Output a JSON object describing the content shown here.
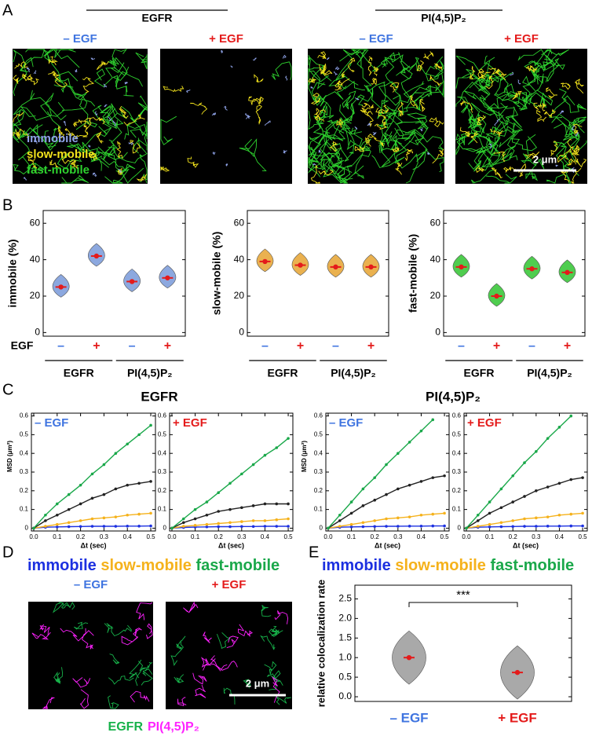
{
  "panel_labels": [
    "A",
    "B",
    "C",
    "D",
    "E"
  ],
  "panel_a": {
    "groups": [
      "EGFR",
      "PI(4,5)P₂"
    ],
    "conditions": [
      "– EGF",
      "+ EGF",
      "– EGF",
      "+ EGF"
    ],
    "condition_colors": [
      "#3f74e0",
      "#e41b1b",
      "#3f74e0",
      "#e41b1b"
    ],
    "legend": [
      {
        "name": "immobile",
        "color": "#8fa3e8"
      },
      {
        "name": "slow-mobile",
        "color": "#f2e21c"
      },
      {
        "name": "fast-mobile",
        "color": "#2ed22e"
      }
    ],
    "scale_bar": "2 μm"
  },
  "panel_c": {
    "titles": [
      "EGFR",
      "PI(4,5)P₂"
    ]
  },
  "panel_d": {
    "conditions": [
      "– EGF",
      "+ EGF"
    ],
    "condition_colors": [
      "#3f74e0",
      "#e41b1b"
    ],
    "legend": [
      {
        "name": "EGFR",
        "color": "#17b24a"
      },
      {
        "name": "PI(4,5)P₂",
        "color": "#ff22ff"
      }
    ],
    "scale_bar": "2 μm"
  },
  "chart_data": [
    {
      "type": "violin",
      "ylabel": "immobile (%)",
      "x_label": "EGF",
      "categories": [
        "–",
        "+",
        "–",
        "+"
      ],
      "category_colors": [
        "#3f74e0",
        "#e41b1b",
        "#3f74e0",
        "#e41b1b"
      ],
      "groups": [
        "EGFR",
        "PI(4,5)P₂"
      ],
      "values": [
        25,
        42,
        28,
        30
      ],
      "color": "#7f9fdc",
      "ylim": [
        -2,
        67
      ],
      "yticks": [
        0,
        20,
        40,
        60
      ]
    },
    {
      "type": "violin",
      "ylabel": "slow-mobile (%)",
      "categories": [
        "–",
        "+",
        "–",
        "+"
      ],
      "category_colors": [
        "#3f74e0",
        "#e41b1b",
        "#3f74e0",
        "#e41b1b"
      ],
      "groups": [
        "EGFR",
        "PI(4,5)P₂"
      ],
      "values": [
        39,
        37,
        36,
        36
      ],
      "color": "#e8a83c",
      "ylim": [
        -2,
        67
      ],
      "yticks": [
        0,
        20,
        40,
        60
      ]
    },
    {
      "type": "violin",
      "ylabel": "fast-mobile (%)",
      "categories": [
        "–",
        "+",
        "–",
        "+"
      ],
      "category_colors": [
        "#3f74e0",
        "#e41b1b",
        "#3f74e0",
        "#e41b1b"
      ],
      "groups": [
        "EGFR",
        "PI(4,5)P₂"
      ],
      "values": [
        36,
        20,
        35,
        33
      ],
      "color": "#3cc83c",
      "ylim": [
        -2,
        67
      ],
      "yticks": [
        0,
        20,
        40,
        60
      ]
    },
    {
      "type": "line",
      "annotation": "– EGF",
      "annotation_color": "#3f74e0",
      "ylabel": "MSD (μm²)",
      "xlabel": "Δt (sec)",
      "x": [
        0,
        0.05,
        0.1,
        0.15,
        0.2,
        0.25,
        0.3,
        0.35,
        0.4,
        0.45,
        0.5
      ],
      "xlim": [
        -0.01,
        0.52
      ],
      "xticks": [
        {
          "value": 0,
          "label": "0.0"
        },
        0.1,
        0.2,
        0.3,
        0.4,
        0.5
      ],
      "ylim": [
        -0.015,
        0.615
      ],
      "yticks": [
        0,
        0.1,
        0.2,
        0.3,
        0.4,
        0.5,
        0.6
      ],
      "series": [
        {
          "name": "immobile",
          "color": "#1c30e0",
          "values": [
            0,
            0.005,
            0.007,
            0.008,
            0.009,
            0.01,
            0.01,
            0.01,
            0.011,
            0.011,
            0.012
          ]
        },
        {
          "name": "slow-mobile",
          "color": "#f5b21c",
          "values": [
            0,
            0.01,
            0.02,
            0.03,
            0.04,
            0.05,
            0.055,
            0.06,
            0.07,
            0.075,
            0.08
          ]
        },
        {
          "color": "#222222",
          "values": [
            0,
            0.04,
            0.07,
            0.1,
            0.13,
            0.16,
            0.18,
            0.21,
            0.23,
            0.24,
            0.25
          ]
        },
        {
          "name": "fast-mobile",
          "color": "#1aa84a",
          "values": [
            0,
            0.07,
            0.13,
            0.18,
            0.23,
            0.29,
            0.34,
            0.4,
            0.45,
            0.5,
            0.55
          ]
        }
      ]
    },
    {
      "type": "line",
      "annotation": "+ EGF",
      "annotation_color": "#e41b1b",
      "xlabel": "Δt (sec)",
      "x": [
        0,
        0.05,
        0.1,
        0.15,
        0.2,
        0.25,
        0.3,
        0.35,
        0.4,
        0.45,
        0.5
      ],
      "xlim": [
        -0.01,
        0.52
      ],
      "xticks": [
        {
          "value": 0,
          "label": "0.0"
        },
        0.1,
        0.2,
        0.3,
        0.4,
        0.5
      ],
      "ylim": [
        -0.015,
        0.615
      ],
      "yticks": [
        0,
        0.1,
        0.2,
        0.3,
        0.4,
        0.5,
        0.6
      ],
      "series": [
        {
          "name": "immobile",
          "color": "#1c30e0",
          "values": [
            0,
            0.004,
            0.006,
            0.007,
            0.008,
            0.008,
            0.009,
            0.009,
            0.01,
            0.01,
            0.01
          ]
        },
        {
          "name": "slow-mobile",
          "color": "#f5b21c",
          "values": [
            0,
            0.01,
            0.015,
            0.02,
            0.025,
            0.03,
            0.035,
            0.04,
            0.04,
            0.045,
            0.05
          ]
        },
        {
          "color": "#222222",
          "values": [
            0,
            0.03,
            0.05,
            0.07,
            0.09,
            0.1,
            0.11,
            0.12,
            0.13,
            0.13,
            0.13
          ]
        },
        {
          "name": "fast-mobile",
          "color": "#1aa84a",
          "values": [
            0,
            0.05,
            0.1,
            0.14,
            0.19,
            0.24,
            0.29,
            0.34,
            0.39,
            0.43,
            0.48
          ]
        }
      ]
    },
    {
      "type": "line",
      "annotation": "– EGF",
      "annotation_color": "#3f74e0",
      "ylabel": "MSD (μm²)",
      "xlabel": "Δt (sec)",
      "x": [
        0,
        0.05,
        0.1,
        0.15,
        0.2,
        0.25,
        0.3,
        0.35,
        0.4,
        0.45,
        0.5
      ],
      "xlim": [
        -0.01,
        0.52
      ],
      "xticks": [
        {
          "value": 0,
          "label": "0.0"
        },
        0.1,
        0.2,
        0.3,
        0.4,
        0.5
      ],
      "ylim": [
        -0.015,
        0.615
      ],
      "yticks": [
        0,
        0.1,
        0.2,
        0.3,
        0.4,
        0.5,
        0.6
      ],
      "series": [
        {
          "name": "immobile",
          "color": "#1c30e0",
          "values": [
            0,
            0.005,
            0.007,
            0.008,
            0.009,
            0.01,
            0.01,
            0.011,
            0.011,
            0.012,
            0.012
          ]
        },
        {
          "name": "slow-mobile",
          "color": "#f5b21c",
          "values": [
            0,
            0.01,
            0.02,
            0.03,
            0.04,
            0.05,
            0.055,
            0.06,
            0.07,
            0.075,
            0.08
          ]
        },
        {
          "color": "#222222",
          "values": [
            0,
            0.04,
            0.08,
            0.12,
            0.15,
            0.18,
            0.21,
            0.23,
            0.25,
            0.27,
            0.28
          ]
        },
        {
          "name": "fast-mobile",
          "color": "#1aa84a",
          "values": [
            0,
            0.07,
            0.14,
            0.21,
            0.27,
            0.34,
            0.4,
            0.46,
            0.52,
            0.58,
            null
          ]
        }
      ]
    },
    {
      "type": "line",
      "annotation": "+ EGF",
      "annotation_color": "#e41b1b",
      "xlabel": "Δt (sec)",
      "x": [
        0,
        0.05,
        0.1,
        0.15,
        0.2,
        0.25,
        0.3,
        0.35,
        0.4,
        0.45,
        0.5
      ],
      "xlim": [
        -0.01,
        0.52
      ],
      "xticks": [
        {
          "value": 0,
          "label": "0.0"
        },
        0.1,
        0.2,
        0.3,
        0.4,
        0.5
      ],
      "ylim": [
        -0.015,
        0.615
      ],
      "yticks": [
        0,
        0.1,
        0.2,
        0.3,
        0.4,
        0.5,
        0.6
      ],
      "series": [
        {
          "name": "immobile",
          "color": "#1c30e0",
          "values": [
            0,
            0.005,
            0.007,
            0.008,
            0.009,
            0.01,
            0.01,
            0.011,
            0.011,
            0.012,
            0.012
          ]
        },
        {
          "name": "slow-mobile",
          "color": "#f5b21c",
          "values": [
            0,
            0.01,
            0.02,
            0.03,
            0.04,
            0.05,
            0.055,
            0.06,
            0.07,
            0.075,
            0.08
          ]
        },
        {
          "color": "#222222",
          "values": [
            0,
            0.04,
            0.08,
            0.11,
            0.14,
            0.17,
            0.2,
            0.22,
            0.24,
            0.26,
            0.27
          ]
        },
        {
          "name": "fast-mobile",
          "color": "#1aa84a",
          "values": [
            0,
            0.07,
            0.14,
            0.21,
            0.28,
            0.35,
            0.41,
            0.48,
            0.54,
            0.6,
            null
          ]
        }
      ]
    },
    {
      "type": "violin",
      "ylabel": "relative colocalization rate",
      "annotation": "***",
      "categories": [
        "– EGF",
        "+ EGF"
      ],
      "category_colors": [
        "#3f74e0",
        "#e41b1b"
      ],
      "values": [
        1.0,
        0.62
      ],
      "color": "#a0a0a0",
      "ylim": [
        -0.12,
        2.85
      ],
      "yticks": [
        {
          "value": 0,
          "label": "0.0"
        },
        0.5,
        {
          "value": 1,
          "label": "1.0"
        },
        1.5,
        {
          "value": 2,
          "label": "2.0"
        },
        2.5
      ]
    }
  ]
}
